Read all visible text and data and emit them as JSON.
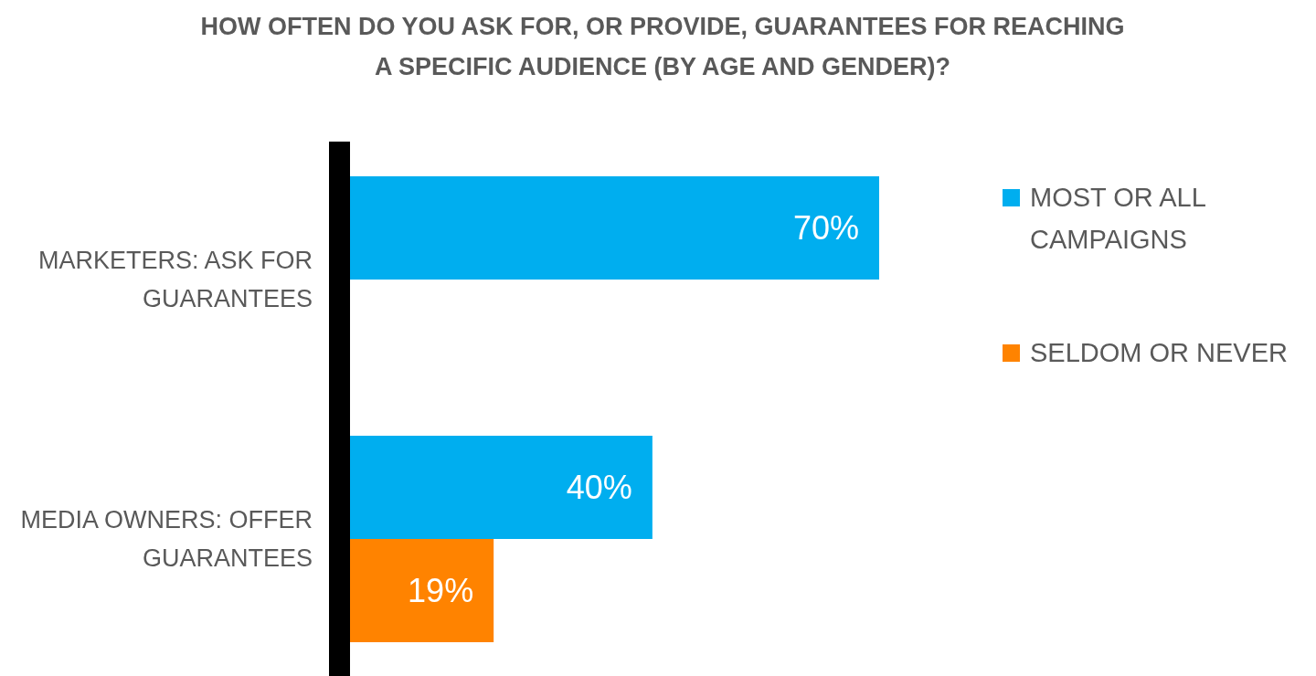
{
  "chart_data": {
    "type": "bar",
    "orientation": "horizontal",
    "title": "HOW OFTEN DO YOU ASK FOR, OR PROVIDE, GUARANTEES FOR REACHING A SPECIFIC AUDIENCE (BY AGE AND GENDER)?",
    "categories": [
      "MARKETERS: ASK FOR GUARANTEES",
      "MEDIA OWNERS: OFFER GUARANTEES"
    ],
    "series": [
      {
        "name": "MOST OR ALL CAMPAIGNS",
        "color": "#00aeef",
        "values": [
          70,
          40
        ],
        "value_labels": [
          "70%",
          "40%"
        ]
      },
      {
        "name": "SELDOM OR NEVER",
        "color": "#ff8300",
        "values": [
          null,
          19
        ],
        "value_labels": [
          null,
          "19%"
        ]
      }
    ],
    "legend": "top right"
  }
}
